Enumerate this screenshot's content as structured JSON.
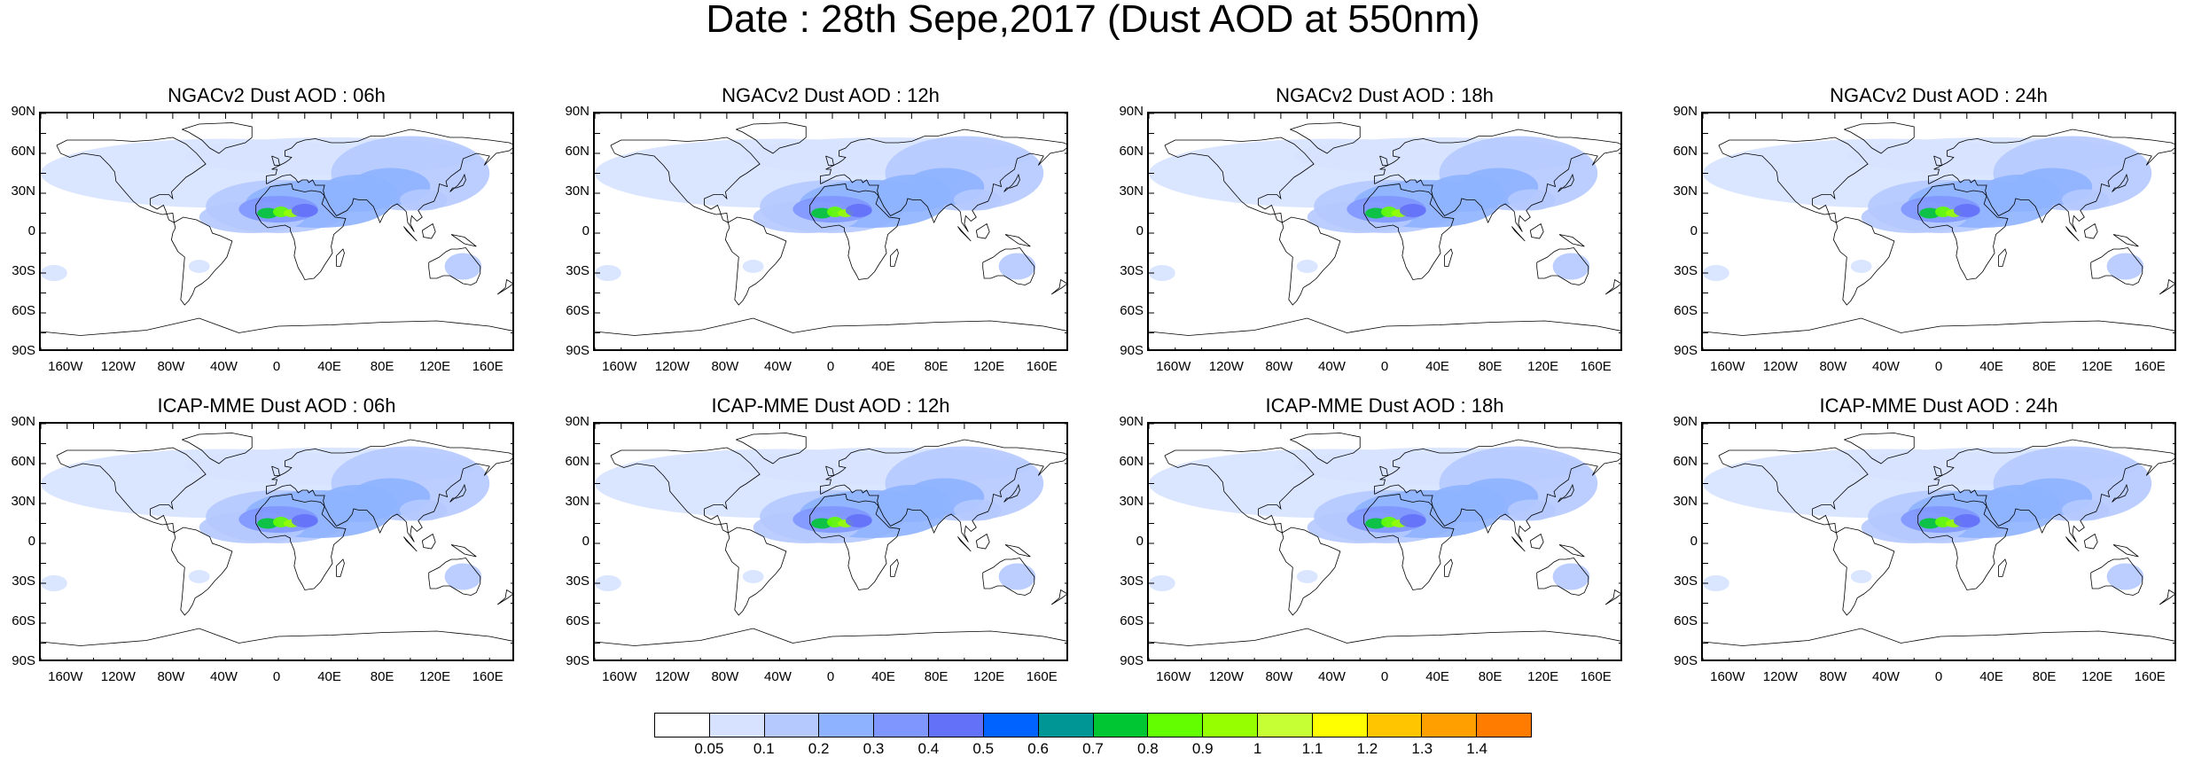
{
  "title": "Date : 28th Sepe,2017 (Dust AOD at 550nm)",
  "panels": [
    {
      "title": "NGACv2 Dust AOD : 06h",
      "model": "NGACv2",
      "hour": "06h"
    },
    {
      "title": "NGACv2 Dust AOD : 12h",
      "model": "NGACv2",
      "hour": "12h"
    },
    {
      "title": "NGACv2 Dust AOD : 18h",
      "model": "NGACv2",
      "hour": "18h"
    },
    {
      "title": "NGACv2 Dust AOD : 24h",
      "model": "NGACv2",
      "hour": "24h"
    },
    {
      "title": "ICAP-MME Dust AOD : 06h",
      "model": "ICAP-MME",
      "hour": "06h"
    },
    {
      "title": "ICAP-MME Dust AOD : 12h",
      "model": "ICAP-MME",
      "hour": "12h"
    },
    {
      "title": "ICAP-MME Dust AOD : 18h",
      "model": "ICAP-MME",
      "hour": "18h"
    },
    {
      "title": "ICAP-MME Dust AOD : 24h",
      "model": "ICAP-MME",
      "hour": "24h"
    }
  ],
  "lat_labels": [
    "90N",
    "60N",
    "30N",
    "0",
    "30S",
    "60S",
    "90S"
  ],
  "lon_labels": [
    "160W",
    "120W",
    "80W",
    "40W",
    "0",
    "40E",
    "80E",
    "120E",
    "160E"
  ],
  "colorbar": {
    "labels": [
      "0.05",
      "0.1",
      "0.2",
      "0.3",
      "0.4",
      "0.5",
      "0.6",
      "0.7",
      "0.8",
      "0.9",
      "1",
      "1.1",
      "1.2",
      "1.3",
      "1.4"
    ],
    "colors": [
      "#ffffff",
      "#d6e2ff",
      "#b5c9ff",
      "#8eb2ff",
      "#7f96ff",
      "#6370f8",
      "#0063ff",
      "#009696",
      "#00c633",
      "#63ff00",
      "#96ff00",
      "#c6ff33",
      "#ffff00",
      "#ffc600",
      "#ffa000",
      "#ff7c00",
      "#ff1900"
    ]
  }
}
